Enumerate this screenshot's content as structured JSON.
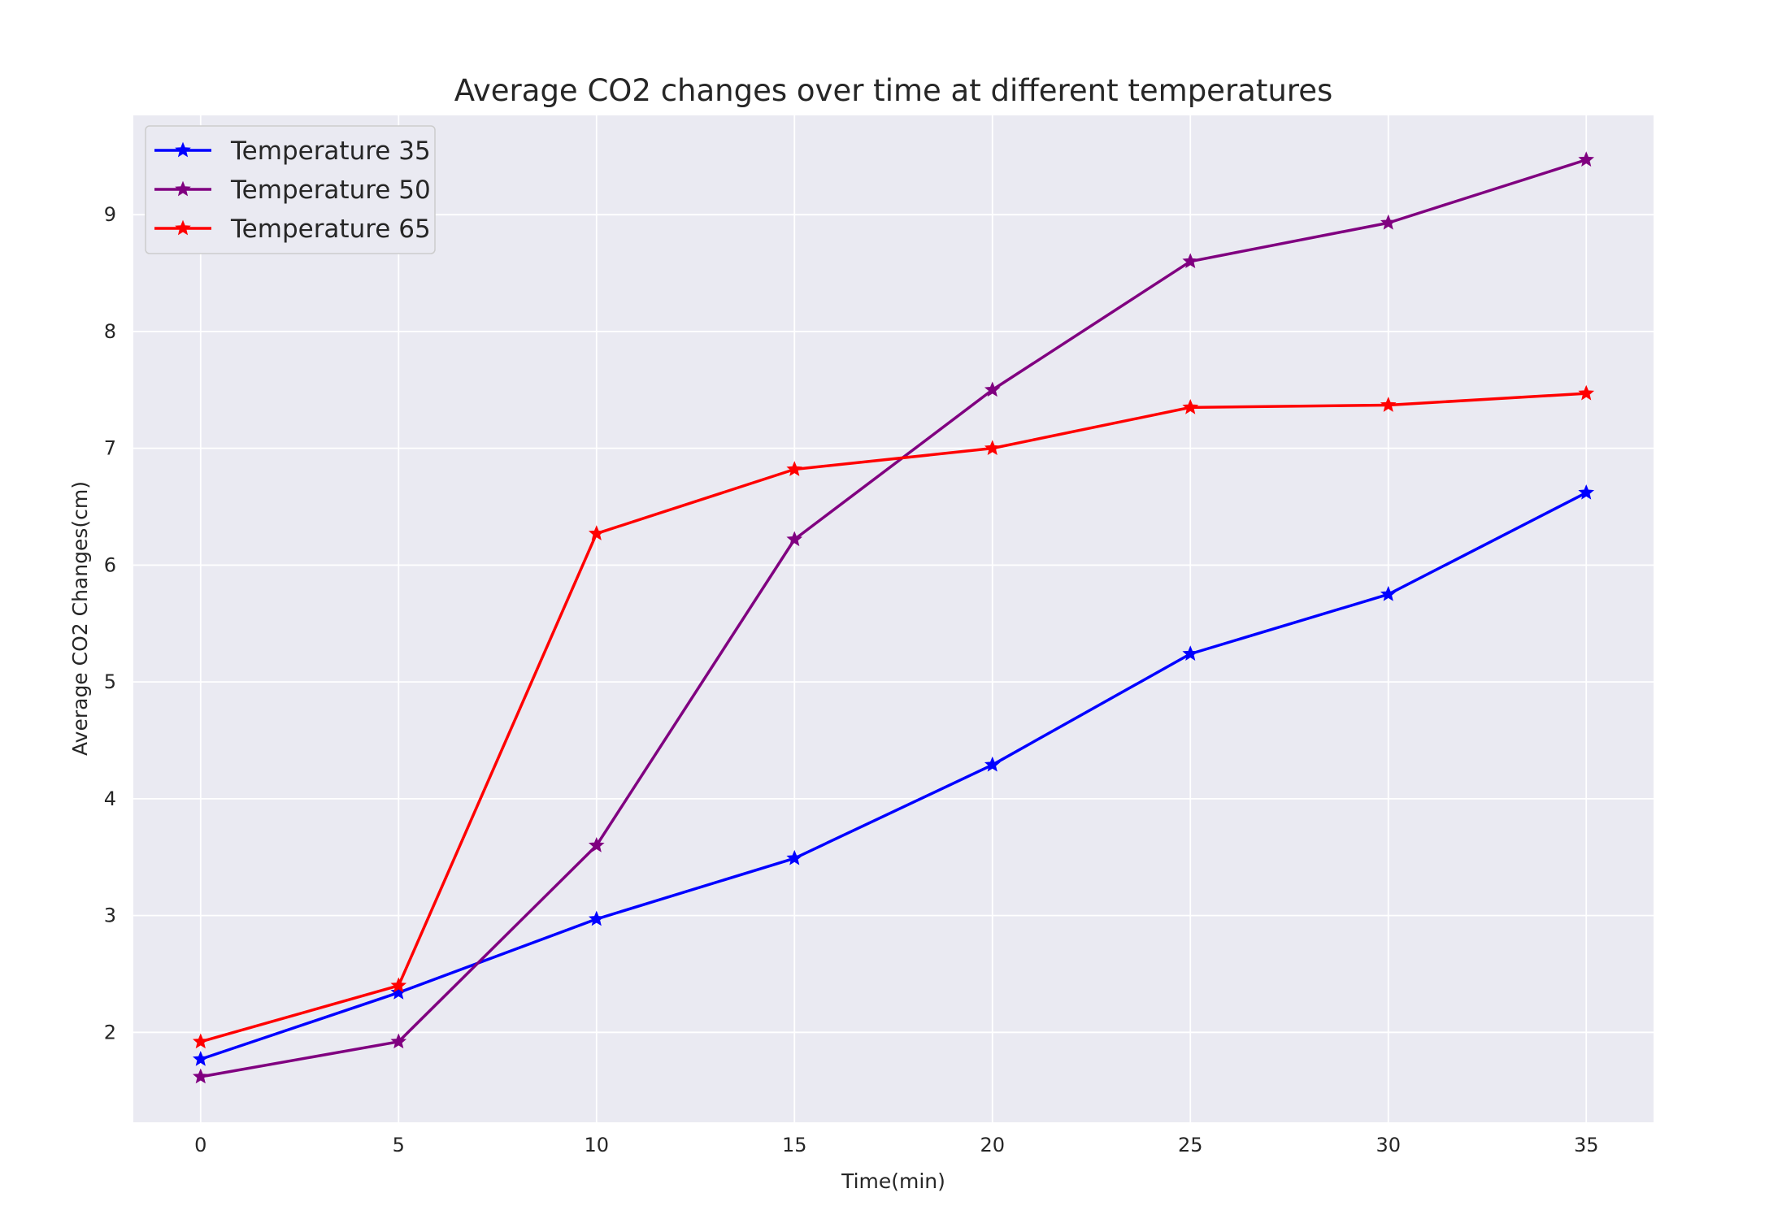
{
  "chart_data": {
    "type": "line",
    "title": "Average CO2 changes over time at different temperatures",
    "xlabel": "Time(min)",
    "ylabel": "Average CO2 Changes(cm)",
    "x": [
      0,
      5,
      10,
      15,
      20,
      25,
      30,
      35
    ],
    "xticks": [
      "0",
      "5",
      "10",
      "15",
      "20",
      "25",
      "30",
      "35"
    ],
    "yticks": [
      "2",
      "3",
      "4",
      "5",
      "6",
      "7",
      "8",
      "9"
    ],
    "xlim": [
      -1.7,
      36.7
    ],
    "ylim": [
      1.23,
      9.85
    ],
    "grid": true,
    "legend_position": "top-left",
    "marker": "star",
    "colors": {
      "background": "#eaeaf2",
      "grid": "#ffffff",
      "text": "#262626"
    },
    "series": [
      {
        "name": "Temperature 35",
        "color": "#0000ff",
        "values": [
          1.77,
          2.34,
          2.97,
          3.49,
          4.29,
          5.24,
          5.75,
          6.62
        ]
      },
      {
        "name": "Temperature 50",
        "color": "#800080",
        "values": [
          1.62,
          1.92,
          3.6,
          6.22,
          7.5,
          8.6,
          8.93,
          9.47
        ]
      },
      {
        "name": "Temperature 65",
        "color": "#ff0000",
        "values": [
          1.92,
          2.4,
          6.27,
          6.82,
          7.0,
          7.35,
          7.37,
          7.47
        ]
      }
    ]
  }
}
